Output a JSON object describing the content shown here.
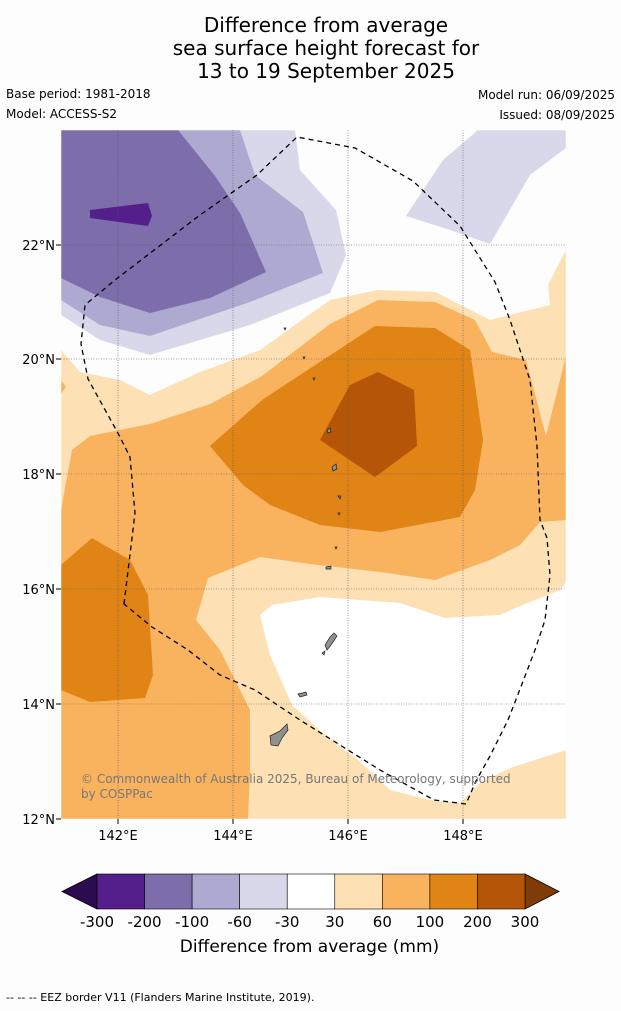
{
  "title": {
    "line1": "Difference from average",
    "line2": "sea surface height forecast for",
    "line3": "13 to 19 September 2025"
  },
  "meta": {
    "base_period": "Base period: 1981-2018",
    "model": "Model: ACCESS-S2",
    "model_run": "Model run: 06/09/2025",
    "issued": "Issued: 08/09/2025"
  },
  "axes": {
    "lat_labels": [
      "22°N",
      "20°N",
      "18°N",
      "16°N",
      "14°N",
      "12°N"
    ],
    "lon_labels": [
      "142°E",
      "144°E",
      "146°E",
      "148°E"
    ]
  },
  "credit": "© Commonwealth of Australia 2025, Bureau of Meteorology, supported by COSPPac",
  "colorbar": {
    "label": "Difference from average (mm)",
    "ticks": [
      "-300",
      "-200",
      "-100",
      "-60",
      "-30",
      "30",
      "60",
      "100",
      "200",
      "300"
    ],
    "colors": [
      "#541f8a",
      "#7d6dab",
      "#aea9d1",
      "#d9d8eb",
      "#ffffff",
      "#fde0b4",
      "#f9b35e",
      "#e08416",
      "#b45507"
    ],
    "extend_low_color": "#2d0b4f",
    "extend_high_color": "#7f3b08"
  },
  "footnote": "--  --  -- EEZ border V11 (Flanders Marine Institute, 2019)."
}
